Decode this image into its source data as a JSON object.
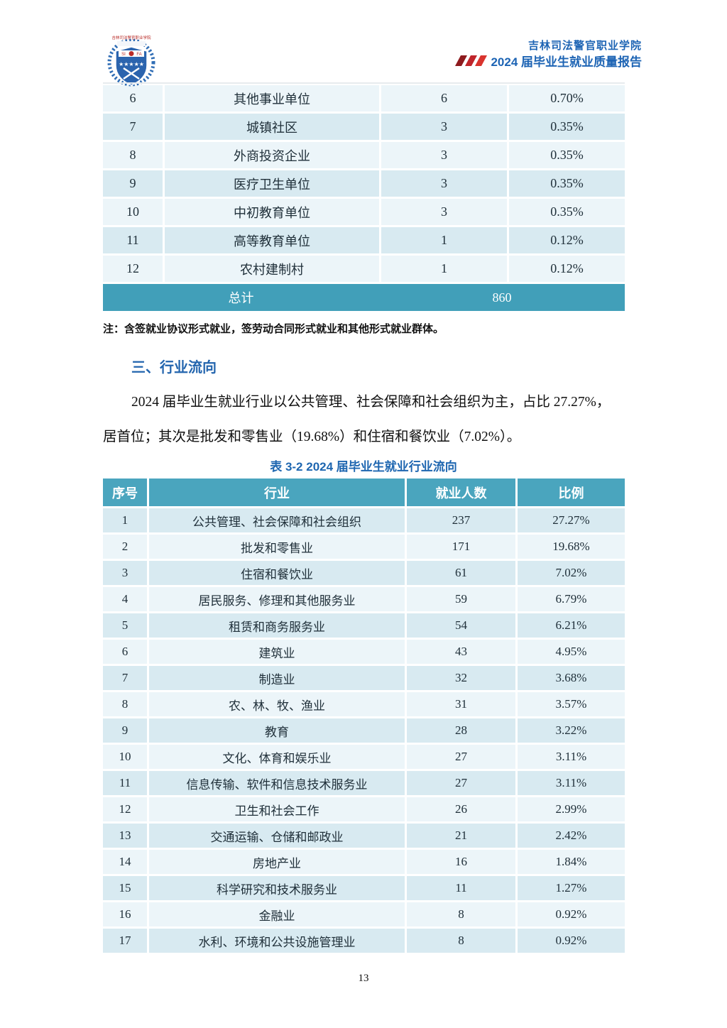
{
  "header": {
    "institution": "吉林司法警官职业学院",
    "report_title": "2024 届毕业生就业质量报告",
    "logo_icon": "school-emblem-shield-wreath",
    "accent_icon": "red-triple-slash",
    "brand_blue": "#1d64b4",
    "accent_red": "#c0252b"
  },
  "colors": {
    "table_header_teal": "#4aa5be",
    "total_row_teal": "#419fb9",
    "row_shade_dark": "#d8eaf1",
    "row_shade_light": "#ecf5f9"
  },
  "table1": {
    "rows": [
      [
        "6",
        "其他事业单位",
        "6",
        "0.70%"
      ],
      [
        "7",
        "城镇社区",
        "3",
        "0.35%"
      ],
      [
        "8",
        "外商投资企业",
        "3",
        "0.35%"
      ],
      [
        "9",
        "医疗卫生单位",
        "3",
        "0.35%"
      ],
      [
        "10",
        "中初教育单位",
        "3",
        "0.35%"
      ],
      [
        "11",
        "高等教育单位",
        "1",
        "0.12%"
      ],
      [
        "12",
        "农村建制村",
        "1",
        "0.12%"
      ]
    ],
    "total_label": "总计",
    "total_value": "860"
  },
  "note": "注：含签就业协议形式就业，签劳动合同形式就业和其他形式就业群体。",
  "section": {
    "heading": "三、行业流向",
    "paragraph_lines": [
      "2024 届毕业生就业行业以公共管理、社会保障和社会组织为主，占比 27.27%，",
      "居首位；其次是批发和零售业（19.68%）和住宿和餐饮业（7.02%）。"
    ]
  },
  "table2": {
    "caption": "表 3-2 2024 届毕业生就业行业流向",
    "headers": [
      "序号",
      "行业",
      "就业人数",
      "比例"
    ],
    "rows": [
      [
        "1",
        "公共管理、社会保障和社会组织",
        "237",
        "27.27%"
      ],
      [
        "2",
        "批发和零售业",
        "171",
        "19.68%"
      ],
      [
        "3",
        "住宿和餐饮业",
        "61",
        "7.02%"
      ],
      [
        "4",
        "居民服务、修理和其他服务业",
        "59",
        "6.79%"
      ],
      [
        "5",
        "租赁和商务服务业",
        "54",
        "6.21%"
      ],
      [
        "6",
        "建筑业",
        "43",
        "4.95%"
      ],
      [
        "7",
        "制造业",
        "32",
        "3.68%"
      ],
      [
        "8",
        "农、林、牧、渔业",
        "31",
        "3.57%"
      ],
      [
        "9",
        "教育",
        "28",
        "3.22%"
      ],
      [
        "10",
        "文化、体育和娱乐业",
        "27",
        "3.11%"
      ],
      [
        "11",
        "信息传输、软件和信息技术服务业",
        "27",
        "3.11%"
      ],
      [
        "12",
        "卫生和社会工作",
        "26",
        "2.99%"
      ],
      [
        "13",
        "交通运输、仓储和邮政业",
        "21",
        "2.42%"
      ],
      [
        "14",
        "房地产业",
        "16",
        "1.84%"
      ],
      [
        "15",
        "科学研究和技术服务业",
        "11",
        "1.27%"
      ],
      [
        "16",
        "金融业",
        "8",
        "0.92%"
      ],
      [
        "17",
        "水利、环境和公共设施管理业",
        "8",
        "0.92%"
      ]
    ]
  },
  "page": {
    "number": "13"
  }
}
